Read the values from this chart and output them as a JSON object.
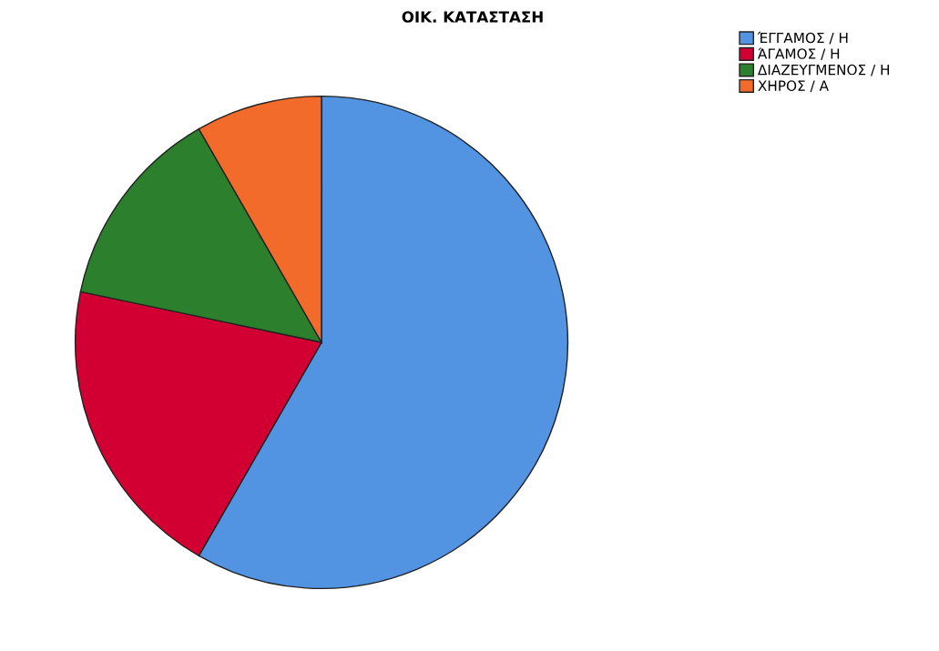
{
  "chart_data": {
    "type": "pie",
    "title": "ΟΙΚ. ΚΑΤΑΣΤΑΣΗ",
    "categories": [
      "ΈΓΓΑΜΟΣ / Η",
      "ΆΓΑΜΟΣ / Η",
      "ΔΙΑΖΕΥΓΜΕΝΟΣ / Η",
      "ΧΗΡΟΣ / Α"
    ],
    "values": [
      58.3,
      20.0,
      13.4,
      8.3
    ],
    "colors": [
      "#5294e2",
      "#d20032",
      "#2c7f2c",
      "#f26b2b"
    ],
    "legend": "top right"
  }
}
